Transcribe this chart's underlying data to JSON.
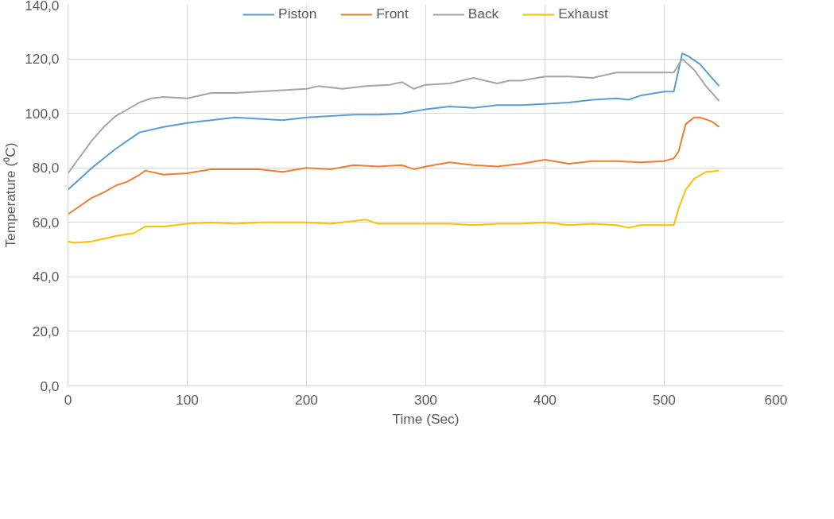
{
  "chart_data": {
    "type": "line",
    "xlabel": "Time (Sec)",
    "ylabel": "Temperature (⁰C)",
    "xlim": [
      0,
      600
    ],
    "xticks": [
      0,
      100,
      200,
      300,
      400,
      500,
      600
    ],
    "ylim": [
      0,
      140
    ],
    "yticks": [
      {
        "value": 0,
        "label": "0,0"
      },
      {
        "value": 20,
        "label": "20,0"
      },
      {
        "value": 40,
        "label": "40,0"
      },
      {
        "value": 60,
        "label": "60,0"
      },
      {
        "value": 80,
        "label": "80,0"
      },
      {
        "value": 100,
        "label": "100,0"
      },
      {
        "value": 120,
        "label": "120,0"
      },
      {
        "value": 140,
        "label": "140,0"
      }
    ],
    "grid": true,
    "legend": "top",
    "marker": "none",
    "line_style": "solid",
    "series": [
      {
        "name": "Piston",
        "color": "#5b9bd5",
        "x": [
          0,
          20,
          40,
          60,
          80,
          100,
          120,
          140,
          160,
          180,
          200,
          220,
          240,
          260,
          280,
          300,
          320,
          340,
          360,
          380,
          400,
          420,
          440,
          460,
          470,
          480,
          500,
          508,
          515,
          520,
          530,
          540,
          546
        ],
        "values": [
          72,
          80,
          87,
          93,
          95,
          96.5,
          97.5,
          98.5,
          98,
          97.5,
          98.5,
          99,
          99.5,
          99.5,
          100,
          101.5,
          102.5,
          102,
          103,
          103,
          103.5,
          104,
          105,
          105.5,
          105,
          106.5,
          108,
          108,
          122,
          121,
          118,
          113,
          110
        ]
      },
      {
        "name": "Front",
        "color": "#ed7d31",
        "x": [
          0,
          10,
          20,
          30,
          40,
          50,
          60,
          65,
          80,
          100,
          120,
          140,
          160,
          180,
          200,
          220,
          240,
          260,
          280,
          290,
          300,
          320,
          340,
          360,
          380,
          400,
          420,
          440,
          460,
          480,
          500,
          508,
          512,
          518,
          525,
          530,
          540,
          546
        ],
        "values": [
          63,
          66,
          69,
          71,
          73.5,
          75,
          77.5,
          79,
          77.5,
          78,
          79.5,
          79.5,
          79.5,
          78.5,
          80,
          79.5,
          81,
          80.5,
          81,
          79.5,
          80.5,
          82,
          81,
          80.5,
          81.5,
          83,
          81.5,
          82.5,
          82.5,
          82,
          82.5,
          83.5,
          86,
          96,
          98.5,
          98.5,
          97,
          95
        ]
      },
      {
        "name": "Back",
        "color": "#a5a5a5",
        "x": [
          0,
          10,
          20,
          30,
          40,
          50,
          60,
          70,
          80,
          100,
          120,
          140,
          160,
          180,
          200,
          210,
          230,
          250,
          270,
          280,
          290,
          300,
          320,
          340,
          360,
          370,
          380,
          400,
          420,
          440,
          460,
          480,
          500,
          508,
          515,
          525,
          535,
          546
        ],
        "values": [
          78,
          84,
          90,
          95,
          99,
          101.5,
          104,
          105.5,
          106,
          105.5,
          107.5,
          107.5,
          108,
          108.5,
          109,
          110,
          109,
          110,
          110.5,
          111.5,
          109,
          110.5,
          111,
          113,
          111,
          112,
          112,
          113.5,
          113.5,
          113,
          115,
          115,
          115,
          115,
          120,
          116,
          110,
          104.5
        ]
      },
      {
        "name": "Exhaust",
        "color": "#ffc000",
        "x": [
          0,
          5,
          20,
          40,
          55,
          65,
          80,
          100,
          120,
          140,
          160,
          200,
          220,
          240,
          250,
          260,
          280,
          300,
          320,
          340,
          360,
          380,
          400,
          420,
          440,
          460,
          470,
          480,
          500,
          508,
          512,
          518,
          525,
          535,
          546
        ],
        "values": [
          53,
          52.5,
          53,
          55,
          56,
          58.5,
          58.5,
          59.5,
          60,
          59.5,
          60,
          60,
          59.5,
          60.5,
          61,
          59.5,
          59.5,
          59.5,
          59.5,
          59,
          59.5,
          59.5,
          60,
          59,
          59.5,
          59,
          58,
          59,
          59,
          59,
          65,
          72,
          76,
          78.5,
          79
        ]
      }
    ]
  }
}
